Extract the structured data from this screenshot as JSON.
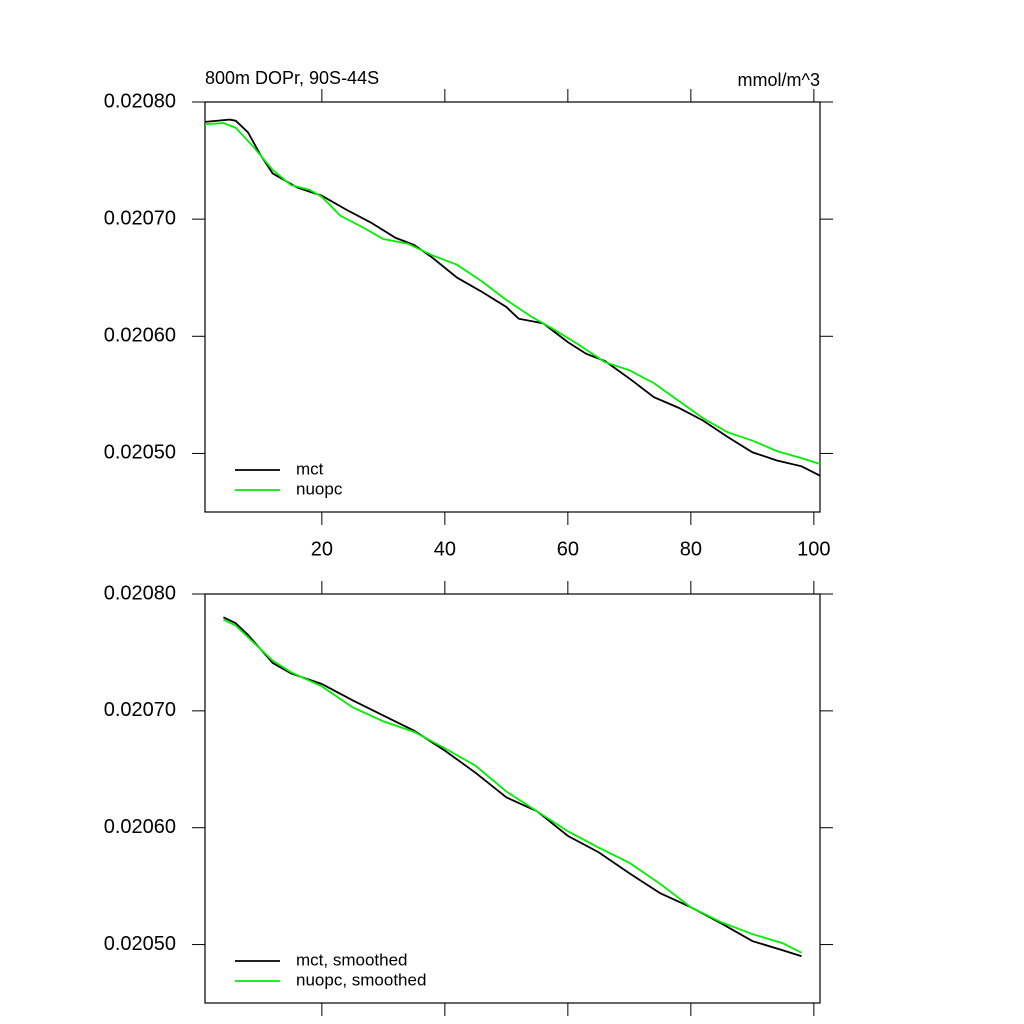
{
  "chart_data": [
    {
      "type": "line",
      "title": "800m DOPr, 90S-44S",
      "units": "mmol/m^3",
      "xlim": [
        1,
        101
      ],
      "xticks": [
        20,
        40,
        60,
        80,
        100
      ],
      "show_xtick_labels": true,
      "ylim": [
        0.02045,
        0.0208
      ],
      "yticks": [
        {
          "value": 0.0208,
          "label": "0.02080"
        },
        {
          "value": 0.0207,
          "label": "0.02070"
        },
        {
          "value": 0.0206,
          "label": "0.02060"
        },
        {
          "value": 0.0205,
          "label": "0.02050"
        }
      ],
      "legend": "bottom-left",
      "series": [
        {
          "name": "mct",
          "color": "#000000",
          "x": [
            1,
            3,
            5,
            6,
            8,
            10,
            12,
            14,
            16,
            20,
            24,
            28,
            32,
            35,
            38,
            42,
            46,
            50,
            52,
            56,
            60,
            63,
            66,
            70,
            74,
            78,
            82,
            86,
            90,
            94,
            98,
            101
          ],
          "values": [
            0.020783,
            0.020784,
            0.020785,
            0.020784,
            0.020774,
            0.020755,
            0.020739,
            0.020733,
            0.020727,
            0.02072,
            0.020708,
            0.020697,
            0.020684,
            0.020678,
            0.020667,
            0.02065,
            0.020638,
            0.020625,
            0.020615,
            0.020611,
            0.020595,
            0.020585,
            0.020579,
            0.020564,
            0.020548,
            0.020539,
            0.020528,
            0.020514,
            0.020501,
            0.020494,
            0.020489,
            0.020481
          ]
        },
        {
          "name": "nuopc",
          "color": "#00ee00",
          "x": [
            1,
            4,
            6,
            9,
            12,
            15,
            18,
            20,
            23,
            27,
            30,
            34,
            38,
            42,
            46,
            50,
            54,
            58,
            62,
            66,
            70,
            74,
            78,
            82,
            86,
            90,
            94,
            98,
            101
          ],
          "values": [
            0.020781,
            0.020782,
            0.020778,
            0.020761,
            0.020742,
            0.020729,
            0.020725,
            0.020719,
            0.020703,
            0.020692,
            0.020683,
            0.020679,
            0.020669,
            0.020661,
            0.020647,
            0.020631,
            0.020617,
            0.020605,
            0.020592,
            0.020578,
            0.020571,
            0.02056,
            0.020545,
            0.02053,
            0.020518,
            0.020511,
            0.020502,
            0.020496,
            0.020491
          ]
        }
      ]
    },
    {
      "type": "line",
      "xlim": [
        1,
        101
      ],
      "xticks": [
        20,
        40,
        60,
        80,
        100
      ],
      "show_xtick_labels": false,
      "ylim": [
        0.02045,
        0.0208
      ],
      "yticks": [
        {
          "value": 0.0208,
          "label": "0.02080"
        },
        {
          "value": 0.0207,
          "label": "0.02070"
        },
        {
          "value": 0.0206,
          "label": "0.02060"
        },
        {
          "value": 0.0205,
          "label": "0.02050"
        }
      ],
      "legend": "bottom-left",
      "series": [
        {
          "name": "mct, smoothed",
          "color": "#000000",
          "x": [
            4,
            6,
            8,
            10,
            12,
            15,
            20,
            25,
            30,
            35,
            40,
            45,
            50,
            55,
            60,
            65,
            70,
            75,
            80,
            85,
            90,
            95,
            98
          ],
          "values": [
            0.02078,
            0.020775,
            0.020765,
            0.020753,
            0.020741,
            0.020732,
            0.020723,
            0.020709,
            0.020696,
            0.020683,
            0.020666,
            0.020647,
            0.020626,
            0.020614,
            0.020593,
            0.020579,
            0.020561,
            0.020544,
            0.020532,
            0.020518,
            0.020503,
            0.020495,
            0.02049
          ]
        },
        {
          "name": "nuopc, smoothed",
          "color": "#00ee00",
          "x": [
            4,
            6,
            8,
            10,
            12,
            15,
            20,
            25,
            30,
            35,
            40,
            45,
            50,
            55,
            60,
            65,
            70,
            75,
            80,
            85,
            90,
            95,
            98
          ],
          "values": [
            0.020778,
            0.020773,
            0.020763,
            0.020753,
            0.020743,
            0.020733,
            0.020721,
            0.020703,
            0.020691,
            0.020682,
            0.020668,
            0.020653,
            0.020631,
            0.020614,
            0.020597,
            0.020583,
            0.02057,
            0.020552,
            0.020532,
            0.020519,
            0.020509,
            0.020501,
            0.020493
          ]
        }
      ]
    }
  ]
}
